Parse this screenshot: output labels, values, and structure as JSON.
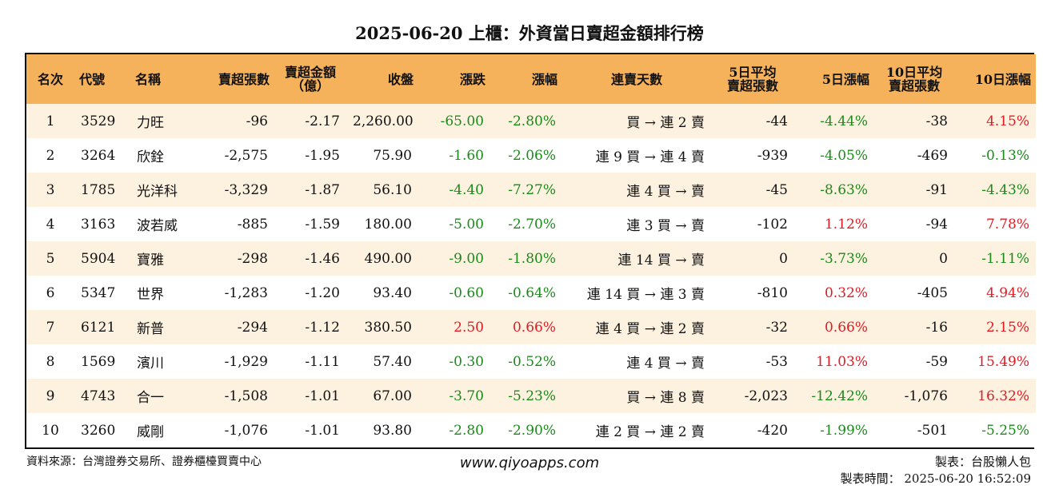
{
  "title": "2025-06-20 上櫃：外資當日賣超金額排行榜",
  "headers": {
    "rank": "名次",
    "code": "代號",
    "name": "名稱",
    "sell_shares": "賣超張數",
    "sell_amount_1": "賣超金額",
    "sell_amount_2": "（億）",
    "close": "收盤",
    "change": "漲跌",
    "change_pct": "漲幅",
    "streak": "連賣天數",
    "avg5_1": "5日平均",
    "avg5_2": "賣超張數",
    "pct5": "5日漲幅",
    "avg10_1": "10日平均",
    "avg10_2": "賣超張數",
    "pct10": "10日漲幅"
  },
  "rows": [
    {
      "rank": "1",
      "code": "3529",
      "name": "力旺",
      "sell_shares": "-96",
      "sell_amount": "-2.17",
      "close": "2,260.00",
      "change": "-65.00",
      "change_pct": "-2.80%",
      "streak": "買 → 連 2 賣",
      "avg5": "-44",
      "pct5": "-4.44%",
      "avg10": "-38",
      "pct10": "4.15%"
    },
    {
      "rank": "2",
      "code": "3264",
      "name": "欣銓",
      "sell_shares": "-2,575",
      "sell_amount": "-1.95",
      "close": "75.90",
      "change": "-1.60",
      "change_pct": "-2.06%",
      "streak": "連 9 買 → 連 4 賣",
      "avg5": "-939",
      "pct5": "-4.05%",
      "avg10": "-469",
      "pct10": "-0.13%"
    },
    {
      "rank": "3",
      "code": "1785",
      "name": "光洋科",
      "sell_shares": "-3,329",
      "sell_amount": "-1.87",
      "close": "56.10",
      "change": "-4.40",
      "change_pct": "-7.27%",
      "streak": "連 4 買 → 賣",
      "avg5": "-45",
      "pct5": "-8.63%",
      "avg10": "-91",
      "pct10": "-4.43%"
    },
    {
      "rank": "4",
      "code": "3163",
      "name": "波若威",
      "sell_shares": "-885",
      "sell_amount": "-1.59",
      "close": "180.00",
      "change": "-5.00",
      "change_pct": "-2.70%",
      "streak": "連 3 買 → 賣",
      "avg5": "-102",
      "pct5": "1.12%",
      "avg10": "-94",
      "pct10": "7.78%"
    },
    {
      "rank": "5",
      "code": "5904",
      "name": "寶雅",
      "sell_shares": "-298",
      "sell_amount": "-1.46",
      "close": "490.00",
      "change": "-9.00",
      "change_pct": "-1.80%",
      "streak": "連 14 買 → 賣",
      "avg5": "0",
      "pct5": "-3.73%",
      "avg10": "0",
      "pct10": "-1.11%"
    },
    {
      "rank": "6",
      "code": "5347",
      "name": "世界",
      "sell_shares": "-1,283",
      "sell_amount": "-1.20",
      "close": "93.40",
      "change": "-0.60",
      "change_pct": "-0.64%",
      "streak": "連 14 買 → 連 3 賣",
      "avg5": "-810",
      "pct5": "0.32%",
      "avg10": "-405",
      "pct10": "4.94%"
    },
    {
      "rank": "7",
      "code": "6121",
      "name": "新普",
      "sell_shares": "-294",
      "sell_amount": "-1.12",
      "close": "380.50",
      "change": "2.50",
      "change_pct": "0.66%",
      "streak": "連 4 買 → 連 2 賣",
      "avg5": "-32",
      "pct5": "0.66%",
      "avg10": "-16",
      "pct10": "2.15%"
    },
    {
      "rank": "8",
      "code": "1569",
      "name": "濱川",
      "sell_shares": "-1,929",
      "sell_amount": "-1.11",
      "close": "57.40",
      "change": "-0.30",
      "change_pct": "-0.52%",
      "streak": "連 4 買 → 賣",
      "avg5": "-53",
      "pct5": "11.03%",
      "avg10": "-59",
      "pct10": "15.49%"
    },
    {
      "rank": "9",
      "code": "4743",
      "name": "合一",
      "sell_shares": "-1,508",
      "sell_amount": "-1.01",
      "close": "67.00",
      "change": "-3.70",
      "change_pct": "-5.23%",
      "streak": "買 → 連 8 賣",
      "avg5": "-2,023",
      "pct5": "-12.42%",
      "avg10": "-1,076",
      "pct10": "16.32%"
    },
    {
      "rank": "10",
      "code": "3260",
      "name": "威剛",
      "sell_shares": "-1,076",
      "sell_amount": "-1.01",
      "close": "93.80",
      "change": "-2.80",
      "change_pct": "-2.90%",
      "streak": "連 2 買 → 連 2 賣",
      "avg5": "-420",
      "pct5": "-1.99%",
      "avg10": "-501",
      "pct10": "-5.25%"
    }
  ],
  "colors": {
    "negative": "#1a8a1a",
    "positive": "#e01b24",
    "header_bg": "#f5b25a",
    "stripe_bg": "#fdf1e0"
  },
  "footer": {
    "source": "資料來源：台灣證券交易所、證券櫃檯買賣中心",
    "website": "www.qiyoapps.com",
    "maker": "製表：台股懶人包",
    "time": "製表時間： 2025-06-20 16:52:09"
  }
}
